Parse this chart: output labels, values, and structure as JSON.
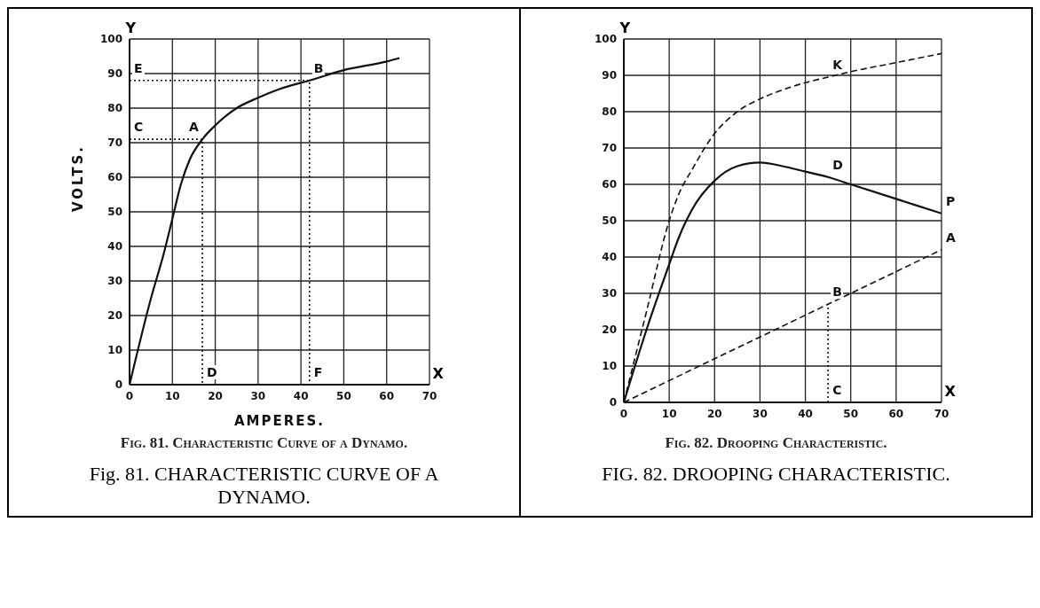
{
  "chart_data": [
    {
      "type": "line",
      "title": "Fig. 81. Characteristic Curve of a Dynamo.",
      "subtitle": "Fig. 81. CHARACTERISTIC CURVE OF A DYNAMO.",
      "xlabel": "AMPERES.",
      "ylabel": "VOLTS.",
      "xlim": [
        0,
        70
      ],
      "ylim": [
        0,
        100
      ],
      "xticks": [
        0,
        10,
        20,
        30,
        40,
        50,
        60,
        70
      ],
      "yticks": [
        0,
        10,
        20,
        30,
        40,
        50,
        60,
        70,
        80,
        90,
        100
      ],
      "grid": true,
      "marker": "none",
      "series": [
        {
          "color": "#111111",
          "line_style": "solid",
          "x": [
            0,
            5,
            8,
            10,
            12,
            14,
            17,
            20,
            25,
            30,
            35,
            42,
            50,
            60,
            63
          ],
          "values": [
            0,
            25,
            38,
            48,
            58,
            65,
            71,
            75,
            80,
            83,
            85.5,
            88,
            91,
            93.5,
            94.5
          ]
        },
        {
          "color": "#111111",
          "line_style": "dotted",
          "x": [
            0,
            17,
            17
          ],
          "values": [
            71,
            71,
            0
          ]
        },
        {
          "color": "#111111",
          "line_style": "dotted",
          "x": [
            0,
            42,
            42
          ],
          "values": [
            88,
            88,
            0
          ]
        }
      ],
      "annotations": [
        "Y",
        "X",
        {
          "text": "A",
          "x": 17,
          "y": 71
        },
        {
          "text": "B",
          "x": 42,
          "y": 88
        },
        {
          "text": "C",
          "x": 0,
          "y": 71
        },
        {
          "text": "D",
          "x": 17,
          "y": 0
        },
        {
          "text": "E",
          "x": 0,
          "y": 88
        },
        {
          "text": "F",
          "x": 42,
          "y": 0
        }
      ]
    },
    {
      "type": "line",
      "title": "Fig. 82. Drooping Characteristic.",
      "subtitle": "FIG. 82. DROOPING CHARACTERISTIC.",
      "xlim": [
        0,
        70
      ],
      "ylim": [
        0,
        100
      ],
      "xticks": [
        0,
        10,
        20,
        30,
        40,
        50,
        60,
        70
      ],
      "yticks": [
        0,
        10,
        20,
        30,
        40,
        50,
        60,
        70,
        80,
        90,
        100
      ],
      "grid": true,
      "marker": "none",
      "series": [
        {
          "color": "#111111",
          "line_style": "solid",
          "x": [
            0,
            5,
            10,
            12,
            15,
            20,
            25,
            30,
            35,
            40,
            45,
            50,
            60,
            70
          ],
          "values": [
            0,
            20,
            38,
            45,
            53,
            61,
            65,
            66,
            65,
            63.5,
            62,
            60,
            56,
            52
          ]
        },
        {
          "color": "#111111",
          "line_style": "dashed",
          "x": [
            0,
            5,
            10,
            12,
            15,
            20,
            25,
            30,
            35,
            40,
            45,
            50,
            60,
            70
          ],
          "values": [
            0,
            25,
            50,
            57,
            64,
            74,
            80,
            83.5,
            86,
            88,
            89.5,
            91,
            93.5,
            96
          ]
        },
        {
          "color": "#111111",
          "line_style": "dashed",
          "x": [
            0,
            70
          ],
          "values": [
            0,
            42
          ]
        },
        {
          "color": "#111111",
          "line_style": "dotted",
          "x": [
            45,
            45
          ],
          "values": [
            0,
            27
          ]
        }
      ],
      "annotations": [
        "Y",
        "X",
        {
          "text": "K",
          "x": 45,
          "y": 89.5
        },
        {
          "text": "D",
          "x": 45,
          "y": 62
        },
        {
          "text": "P",
          "x": 70,
          "y": 52
        },
        {
          "text": "A",
          "x": 70,
          "y": 42
        },
        {
          "text": "B",
          "x": 45,
          "y": 27
        },
        {
          "text": "C",
          "x": 45,
          "y": 0
        }
      ]
    }
  ]
}
